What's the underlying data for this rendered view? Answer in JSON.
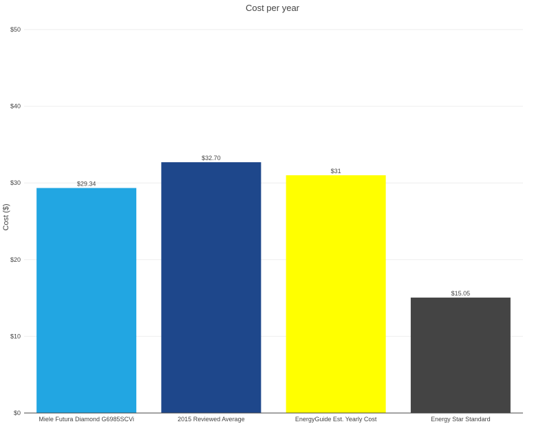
{
  "chart_data": {
    "type": "bar",
    "title": "Cost per year",
    "ylabel": "Cost ($)",
    "xlabel": "",
    "categories": [
      "Miele Futura Diamond G6985SCVi",
      "2015 Reviewed Average",
      "EnergyGuide Est. Yearly Cost",
      "Energy Star Standard"
    ],
    "values": [
      29.34,
      32.7,
      31,
      15.05
    ],
    "value_labels": [
      "$29.34",
      "$32.70",
      "$31",
      "$15.05"
    ],
    "colors": [
      "#22a6e2",
      "#1e478b",
      "#ffff00",
      "#444444"
    ],
    "ylim": [
      0,
      50
    ],
    "yticks": [
      0,
      10,
      20,
      30,
      40,
      50
    ],
    "ytick_labels": [
      "$0",
      "$10",
      "$20",
      "$30",
      "$40",
      "$50"
    ],
    "grid": true,
    "legend": false
  }
}
